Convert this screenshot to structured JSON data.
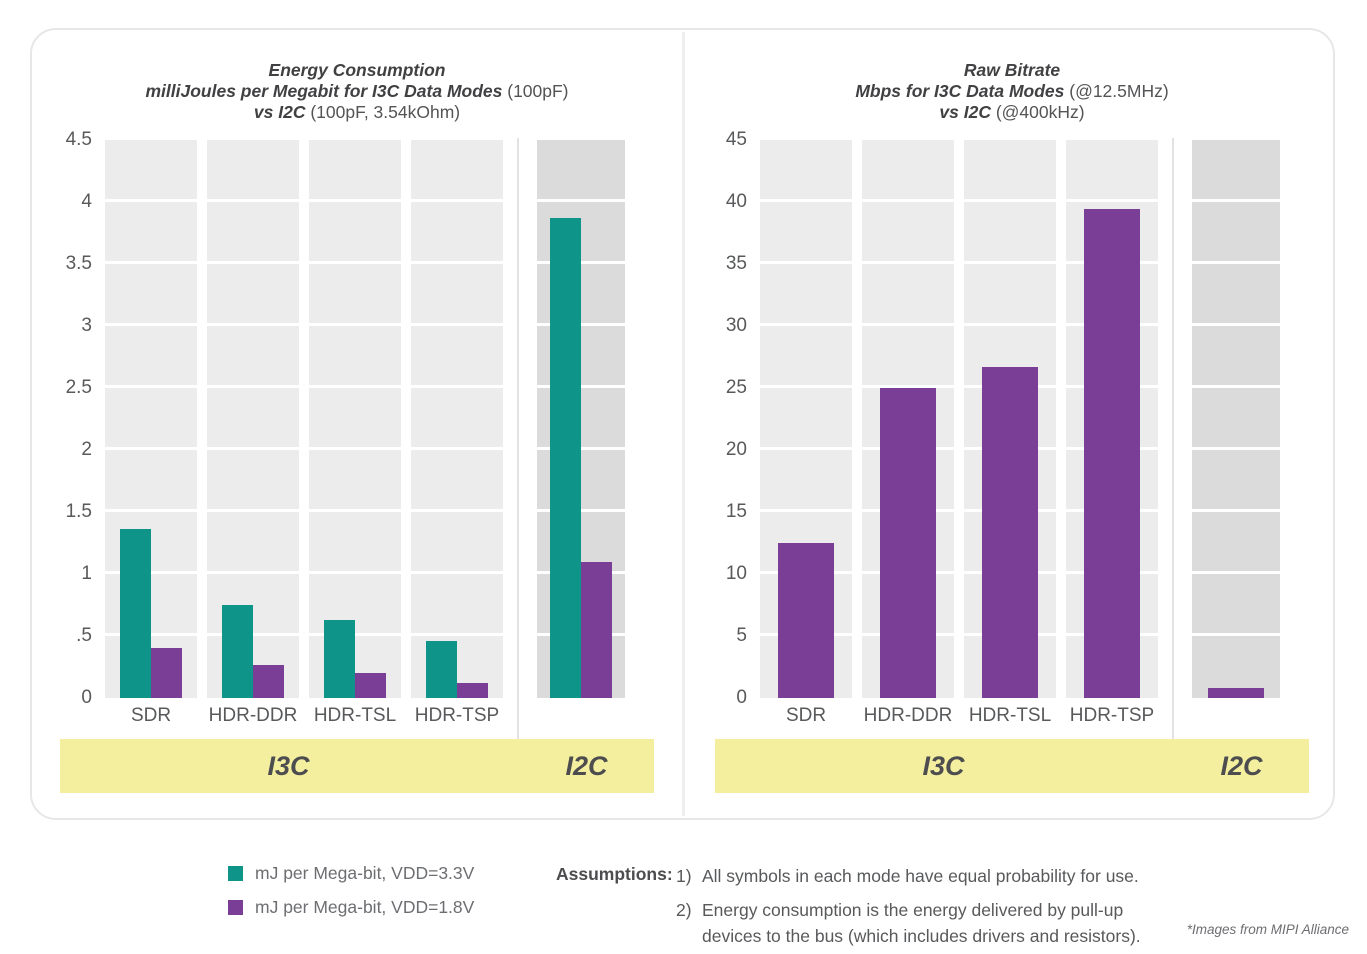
{
  "colors": {
    "teal": "#0E9488",
    "purple": "#7B3E96",
    "band_gray": "#ECECEC",
    "band_gray_dark": "#DBDBDB",
    "yellow_band": "#F4EF9F",
    "text_dark": "#414042",
    "text_gray": "#58595B"
  },
  "chart_data": [
    {
      "type": "bar",
      "title": "Energy Consumption",
      "title_lines": [
        {
          "bold": "Energy Consumption",
          "normal": ""
        },
        {
          "bold": "milliJoules per Megabit for I3C Data Modes",
          "normal": " (100pF)"
        },
        {
          "bold": "vs I2C",
          "normal": " (100pF, 3.54kOhm)"
        }
      ],
      "categories": [
        "SDR",
        "HDR-DDR",
        "HDR-TSL",
        "HDR-TSP",
        "I2C"
      ],
      "tick_labels": [
        "SDR",
        "HDR-DDR",
        "HDR-TSL",
        "HDR-TSP"
      ],
      "series": [
        {
          "name": "mJ per Mega-bit, VDD=3.3V",
          "color": "#0E9488",
          "values": [
            1.36,
            0.75,
            0.63,
            0.46,
            3.87
          ]
        },
        {
          "name": "mJ per Mega-bit, VDD=1.8V",
          "color": "#7B3E96",
          "values": [
            0.4,
            0.27,
            0.2,
            0.12,
            1.1
          ]
        }
      ],
      "ylim": [
        0,
        4.5
      ],
      "yticks": [
        "4.5",
        "4",
        "3.5",
        "3",
        "2.5",
        "2",
        "1.5",
        "1",
        ".5",
        "0"
      ],
      "groups": [
        {
          "label": "I3C",
          "categories": [
            "SDR",
            "HDR-DDR",
            "HDR-TSL",
            "HDR-TSP"
          ]
        },
        {
          "label": "I2C",
          "categories": [
            "I2C"
          ]
        }
      ],
      "grid": true,
      "legend_position": "below"
    },
    {
      "type": "bar",
      "title": "Raw Bitrate",
      "title_lines": [
        {
          "bold": "Raw Bitrate",
          "normal": ""
        },
        {
          "bold": "Mbps for I3C Data Modes",
          "normal": " (@12.5MHz)"
        },
        {
          "bold": "vs I2C",
          "normal": " (@400kHz)"
        }
      ],
      "categories": [
        "SDR",
        "HDR-DDR",
        "HDR-TSL",
        "HDR-TSP",
        "I2C"
      ],
      "tick_labels": [
        "SDR",
        "HDR-DDR",
        "HDR-TSL",
        "HDR-TSP"
      ],
      "series": [
        {
          "name": "Mbps",
          "color": "#7B3E96",
          "values": [
            12.5,
            25,
            26.7,
            39.4,
            0.8
          ]
        }
      ],
      "ylim": [
        0,
        45
      ],
      "yticks": [
        "45",
        "40",
        "35",
        "30",
        "25",
        "20",
        "15",
        "10",
        "5",
        "0"
      ],
      "groups": [
        {
          "label": "I3C",
          "categories": [
            "SDR",
            "HDR-DDR",
            "HDR-TSL",
            "HDR-TSP"
          ]
        },
        {
          "label": "I2C",
          "categories": [
            "I2C"
          ]
        }
      ],
      "grid": true,
      "legend_position": "none"
    }
  ],
  "legend": {
    "items": [
      {
        "label": "mJ per Mega-bit, VDD=3.3V",
        "color": "#0E9488"
      },
      {
        "label": "mJ per Mega-bit, VDD=1.8V",
        "color": "#7B3E96"
      }
    ]
  },
  "assumptions": {
    "heading": "Assumptions:",
    "items": [
      {
        "num": "1)",
        "text": "All symbols in each mode have equal probability for use."
      },
      {
        "num": "2)",
        "text": "Energy consumption is the energy delivered by pull-up devices to the bus (which includes drivers and resistors)."
      }
    ]
  },
  "footnote": "*Images from MIPI Alliance"
}
